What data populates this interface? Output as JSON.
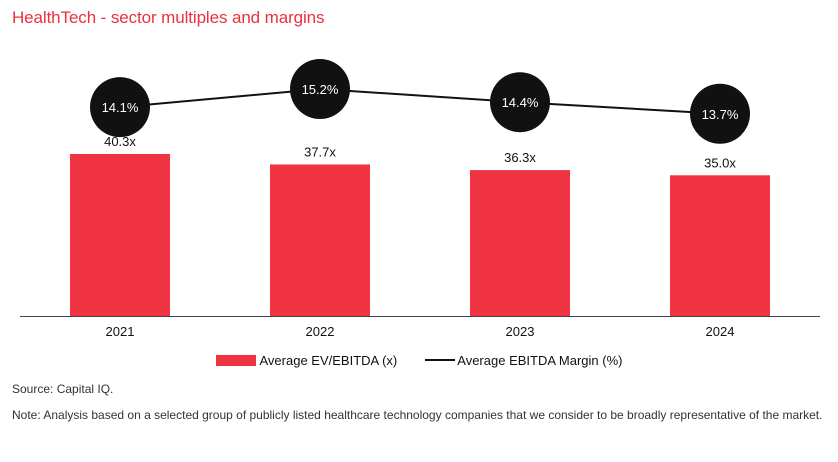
{
  "title": "HealthTech - sector multiples and margins",
  "colors": {
    "title": "#e8323f",
    "bar": "#ef3340",
    "line": "#111111",
    "bubble": "#111111",
    "bubble_text": "#ffffff"
  },
  "chart_data": {
    "type": "bar",
    "categories": [
      "2021",
      "2022",
      "2023",
      "2024"
    ],
    "series": [
      {
        "name": "Average EV/EBITDA (x)",
        "kind": "bar",
        "values": [
          40.3,
          37.7,
          36.3,
          35.0
        ],
        "labels": [
          "40.3x",
          "37.7x",
          "36.3x",
          "35.0x"
        ]
      },
      {
        "name": "Average EBITDA Margin (%)",
        "kind": "line",
        "values": [
          14.1,
          15.2,
          14.4,
          13.7
        ],
        "labels": [
          "14.1%",
          "15.2%",
          "14.4%",
          "13.7%"
        ]
      }
    ],
    "title": "HealthTech - sector multiples and margins",
    "xlabel": "",
    "ylabel": "",
    "ylim": [
      0,
      50
    ],
    "grid": false,
    "legend_position": "bottom-center"
  },
  "legend": {
    "bar_label": "Average EV/EBITDA (x)",
    "line_label": "Average EBITDA Margin (%)"
  },
  "footer": {
    "source": "Source: Capital IQ.",
    "note": "Note: Analysis based on a selected group of publicly listed healthcare technology companies that we consider to be broadly representative of the market."
  }
}
